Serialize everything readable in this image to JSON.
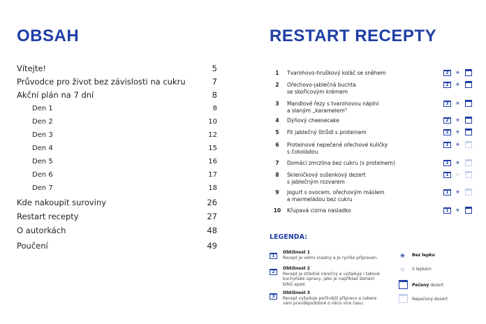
{
  "left": {
    "title": "OBSAH",
    "items": [
      {
        "label": "Vítejte!",
        "page": "5",
        "sub": false
      },
      {
        "label": "Průvodce pro život bez závislosti na cukru",
        "page": "7",
        "sub": false
      },
      {
        "label": "Akční plán na 7 dní",
        "page": "8",
        "sub": false
      },
      {
        "label": "Den 1",
        "page": "8",
        "sub": true
      },
      {
        "label": "Den 2",
        "page": "10",
        "sub": true
      },
      {
        "label": "Den 3",
        "page": "12",
        "sub": true
      },
      {
        "label": "Den 4",
        "page": "15",
        "sub": true
      },
      {
        "label": "Den 5",
        "page": "16",
        "sub": true
      },
      {
        "label": "Den 6",
        "page": "17",
        "sub": true
      },
      {
        "label": "Den 7",
        "page": "18",
        "sub": true
      },
      {
        "label": "Kde nakoupit suroviny",
        "page": "26",
        "sub": false
      },
      {
        "label": "Restart recepty",
        "page": "27",
        "sub": false
      },
      {
        "label": "O autorkách",
        "page": "48",
        "sub": false
      },
      {
        "label": "Poučení",
        "page": "49",
        "sub": false
      }
    ]
  },
  "right": {
    "title": "RESTART RECEPTY",
    "recipes": [
      {
        "num": "1",
        "l1": "Tvarohovo-hruškový koláč se sněhem",
        "l2": "",
        "difficulty": "2",
        "gluten_free": true,
        "baked": true
      },
      {
        "num": "2",
        "l1": "Ořechovo-jablečná buchta",
        "l2": "se skořicovým krémem",
        "difficulty": "2",
        "gluten_free": true,
        "baked": true
      },
      {
        "num": "3",
        "l1": "Mandlové řezy s tvarohovou náplní",
        "l2": "a slaným „karamelem\"",
        "difficulty": "3",
        "gluten_free": true,
        "baked": true
      },
      {
        "num": "4",
        "l1": "Dýňový cheesecake",
        "l2": "",
        "difficulty": "2",
        "gluten_free": true,
        "baked": true
      },
      {
        "num": "5",
        "l1": "Fit jablečný štrůdl s proteinem",
        "l2": "",
        "difficulty": "2",
        "gluten_free": true,
        "baked": true
      },
      {
        "num": "6",
        "l1": "Proteinové nepečené ořechové kuličky",
        "l2": "s čokoládou",
        "difficulty": "1",
        "gluten_free": true,
        "baked": false
      },
      {
        "num": "7",
        "l1": "Domácí zmrzlina bez cukru (s proteinem)",
        "l2": "",
        "difficulty": "1",
        "gluten_free": true,
        "baked": false
      },
      {
        "num": "8",
        "l1": "Skleničkový sušenkový dezert",
        "l2": "s jablečným rozvarem",
        "difficulty": "1",
        "gluten_free": false,
        "baked": false
      },
      {
        "num": "9",
        "l1": "Jogurt s ovocem, ořechovým máslem",
        "l2": "a marmeládou bez cukru",
        "difficulty": "1",
        "gluten_free": true,
        "baked": false
      },
      {
        "num": "10",
        "l1": "Křupavá cizrna nasladko",
        "l2": "",
        "difficulty": "1",
        "gluten_free": true,
        "baked": true
      }
    ]
  },
  "legend": {
    "title": "LEGENDA:",
    "d1": {
      "n": "1",
      "title": "Obtížnost 1",
      "text": "Recept je velmi snadný a je rychle připraven."
    },
    "d2": {
      "n": "2",
      "title": "Obtížnost 2",
      "text": "Recept je středně náročný a vyžaduje i takové kuchyňské úpravy, jako je například šlehání bílků apod."
    },
    "d3": {
      "n": "3",
      "title": "Obtížnost 3",
      "text": "Recept vyžaduje pečlivější přípravu a zabere vám pravděpodobně o něco více času."
    },
    "gf": "Bez lepku",
    "g": "S lepkem",
    "baked_b": "Pečený",
    "baked_r": " dezert",
    "unbaked": "Nepečený dezert"
  },
  "colors": {
    "accent": "#1f3ea6"
  }
}
